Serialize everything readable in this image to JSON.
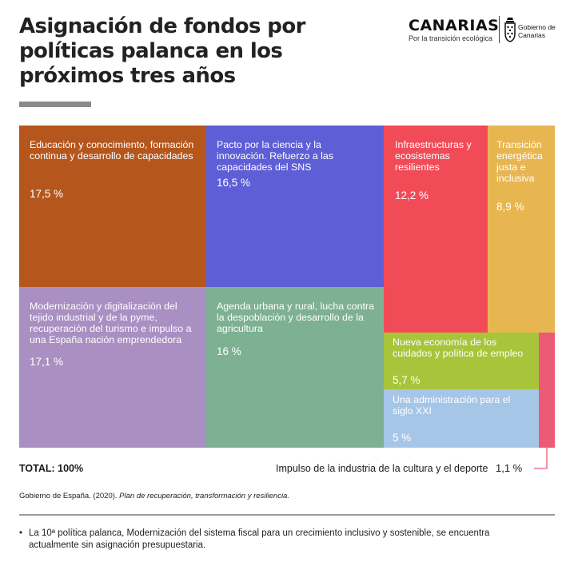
{
  "header": {
    "title": "Asignación de fondos por políticas palanca en los próximos tres años",
    "logo_name": "CANARIAS",
    "logo_tagline": "Por la transición ecológica",
    "gobierno_label": "Gobierno de Canarias"
  },
  "chart_data": {
    "type": "treemap",
    "unit": "%",
    "items": [
      {
        "label": "Educación y conocimiento, formación continua y desarrollo de capacidades",
        "value": 17.5,
        "value_text": "17,5 %",
        "color": "#b5561d"
      },
      {
        "label": "Modernización y digitalización del tejido industrial y de la pyme, recuperación del turismo e impulso a una España nación emprendedora",
        "value": 17.1,
        "value_text": "17,1 %",
        "color": "#a98fc2"
      },
      {
        "label": "Pacto por la ciencia y la innovación. Refuerzo a las capacidades del SNS",
        "value": 16.5,
        "value_text": "16,5 %",
        "color": "#5e5ed6"
      },
      {
        "label": "Agenda urbana y rural, lucha contra la despoblación y desarrollo de la agricultura",
        "value": 16,
        "value_text": "16 %",
        "color": "#7eb092"
      },
      {
        "label": "Infraestructuras y ecosistemas resilientes",
        "value": 12.2,
        "value_text": "12,2 %",
        "color": "#f24b58"
      },
      {
        "label": "Transición energética justa e inclusiva",
        "value": 8.9,
        "value_text": "8,9 %",
        "color": "#e8b650"
      },
      {
        "label": "Nueva economía de los cuidados y política de empleo",
        "value": 5.7,
        "value_text": "5,7 %",
        "color": "#a8c43a"
      },
      {
        "label": "Una administración para el siglo XXI",
        "value": 5,
        "value_text": "5 %",
        "color": "#a6c6e8"
      },
      {
        "label": "Impulso de la industria de la cultura y el deporte",
        "value": 1.1,
        "value_text": "1,1 %",
        "color": "#ec5a78"
      }
    ],
    "total_label": "TOTAL: 100%"
  },
  "footer": {
    "source_plain": "Gobierno de España. (2020). ",
    "source_italic": "Plan de recuperación, transformación y resiliencia.",
    "bullet": "•",
    "note": "La 10ª política palanca, Modernización del sistema fiscal para un crecimiento inclusivo y sostenible, se encuentra actualmente sin asignación presupuestaria."
  }
}
